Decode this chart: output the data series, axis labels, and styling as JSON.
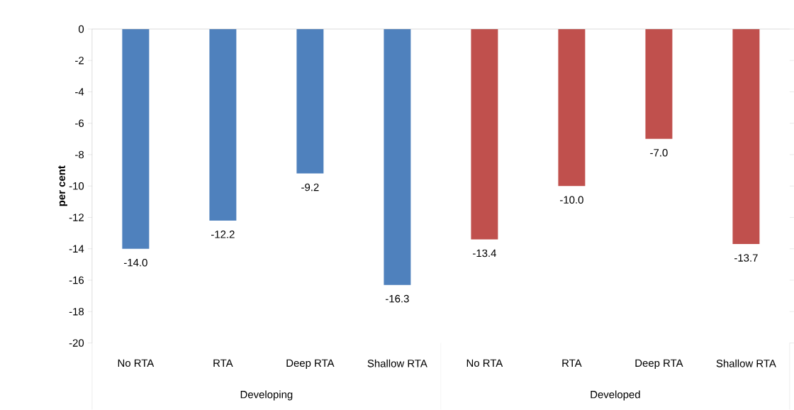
{
  "chart_data": {
    "type": "bar",
    "ylabel": "per cent",
    "categories": [
      "No RTA",
      "RTA",
      "Deep RTA",
      "Shallow RTA",
      "No RTA",
      "RTA",
      "Deep RTA",
      "Shallow RTA"
    ],
    "values": [
      -14.0,
      -12.2,
      -9.2,
      -16.3,
      -13.4,
      -10.0,
      -7.0,
      -13.7
    ],
    "value_labels": [
      "-14.0",
      "-12.2",
      "-9.2",
      "-16.3",
      "-13.4",
      "-10.0",
      "-7.0",
      "-13.7"
    ],
    "colors": [
      "#4f81bd",
      "#4f81bd",
      "#4f81bd",
      "#4f81bd",
      "#c0504d",
      "#c0504d",
      "#c0504d",
      "#c0504d"
    ],
    "ylim": [
      -20,
      0
    ],
    "yticks": [
      0,
      -2,
      -4,
      -6,
      -8,
      -10,
      -12,
      -14,
      -16,
      -18,
      -20
    ],
    "annotations": [
      "Developing",
      "Developed"
    ]
  }
}
